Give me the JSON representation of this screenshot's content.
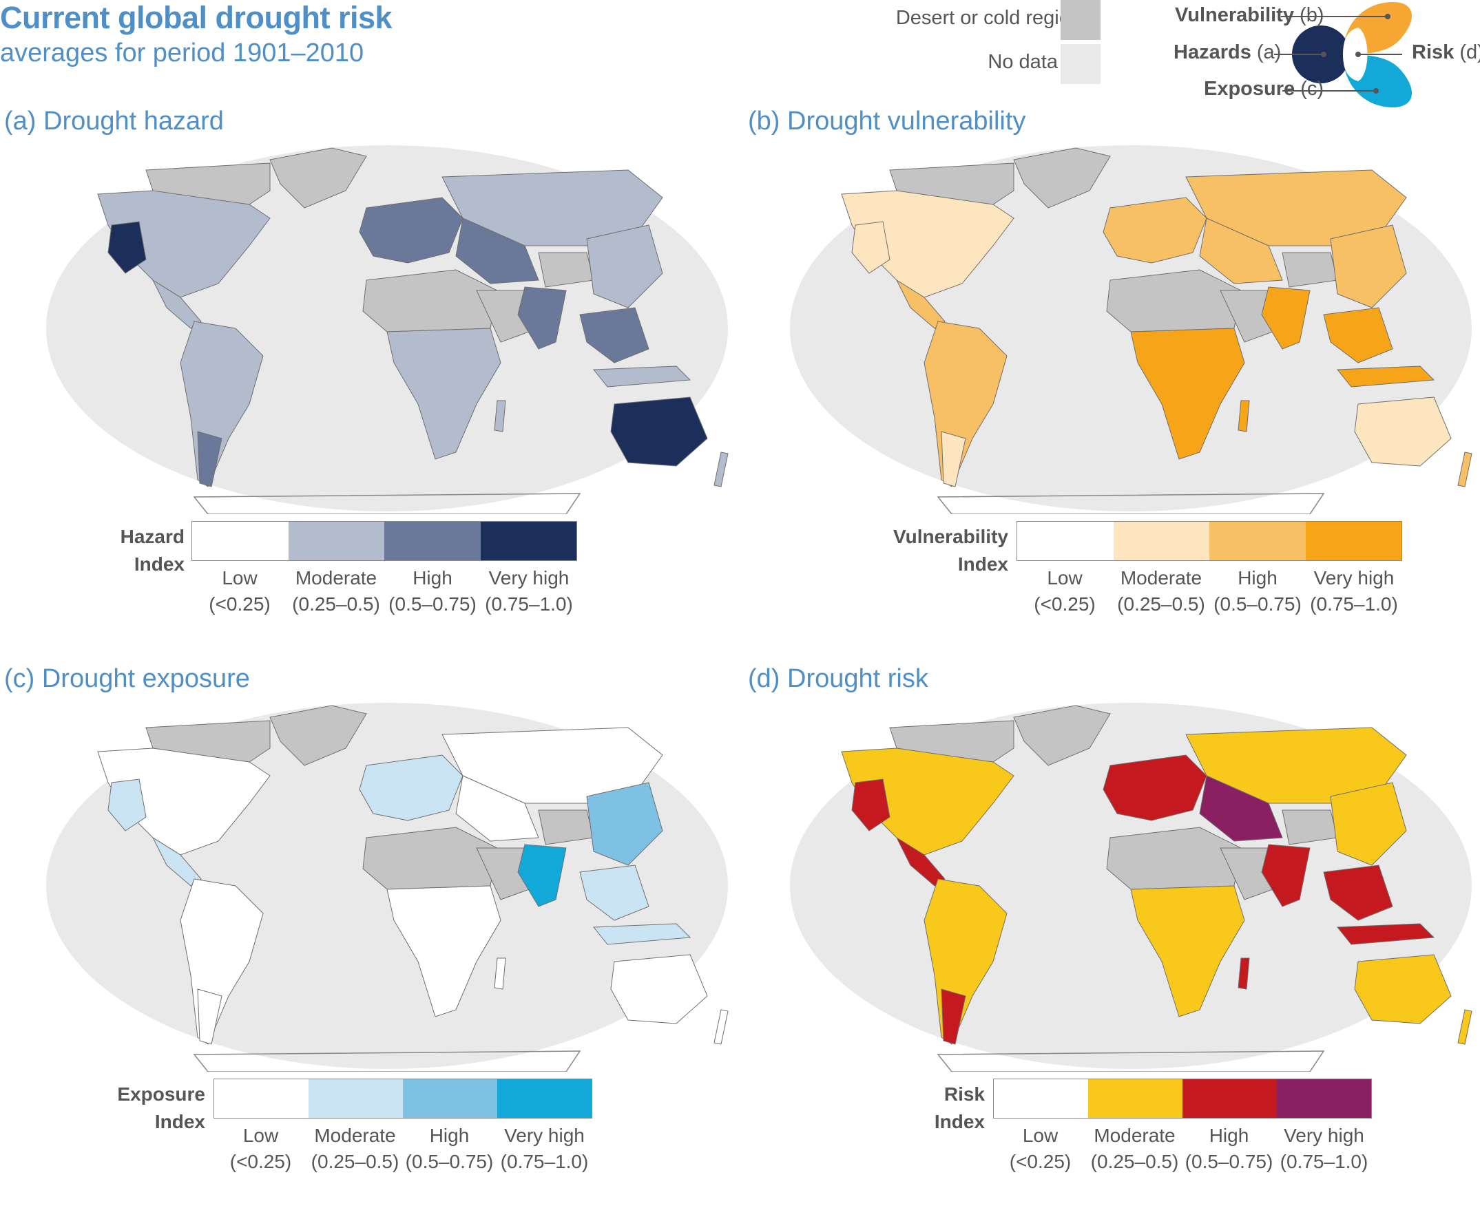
{
  "header": {
    "title": "Current global drought risk",
    "subtitle": "averages for period 1901–2010"
  },
  "key": {
    "desert_label": "Desert or cold region",
    "nodata_label": "No data",
    "desert_color": "#c4c4c4",
    "nodata_color": "#e9e9e9"
  },
  "venn": {
    "vulnerability_bold": "Vulnerability",
    "vulnerability_tag": "(b)",
    "hazards_bold": "Hazards",
    "hazards_tag": "(a)",
    "risk_bold": "Risk",
    "risk_tag": "(d)",
    "exposure_bold": "Exposure",
    "exposure_tag": "(c)",
    "colors": {
      "vulnerability": "#f5a633",
      "hazards": "#1b2f5a",
      "exposure": "#12a8d8"
    }
  },
  "panels": [
    {
      "title": "(a) Drought hazard",
      "legend_title_1": "Hazard",
      "legend_title_2": "Index",
      "colors": [
        "#ffffff",
        "#b3bccc",
        "#6a7899",
        "#1b2f5a"
      ],
      "classes": [
        {
          "name": "Low",
          "range": "(<0.25)"
        },
        {
          "name": "Moderate",
          "range": "(0.25–0.5)"
        },
        {
          "name": "High",
          "range": "(0.5–0.75)"
        },
        {
          "name": "Very high",
          "range": "(0.75–1.0)"
        }
      ]
    },
    {
      "title": "(b) Drought vulnerability",
      "legend_title_1": "Vulnerability",
      "legend_title_2": "Index",
      "colors": [
        "#ffffff",
        "#fde5c0",
        "#f8c064",
        "#f5a517"
      ],
      "classes": [
        {
          "name": "Low",
          "range": "(<0.25)"
        },
        {
          "name": "Moderate",
          "range": "(0.25–0.5)"
        },
        {
          "name": "High",
          "range": "(0.5–0.75)"
        },
        {
          "name": "Very high",
          "range": "(0.75–1.0)"
        }
      ]
    },
    {
      "title": "(c) Drought exposure",
      "legend_title_1": "Exposure",
      "legend_title_2": "Index",
      "colors": [
        "#ffffff",
        "#cbe4f3",
        "#7fc1e2",
        "#12a8d8"
      ],
      "classes": [
        {
          "name": "Low",
          "range": "(<0.25)"
        },
        {
          "name": "Moderate",
          "range": "(0.25–0.5)"
        },
        {
          "name": "High",
          "range": "(0.5–0.75)"
        },
        {
          "name": "Very high",
          "range": "(0.75–1.0)"
        }
      ]
    },
    {
      "title": "(d) Drought risk",
      "legend_title_1": "Risk",
      "legend_title_2": "Index",
      "colors": [
        "#ffffff",
        "#f8c81a",
        "#c4191f",
        "#8a1f62"
      ],
      "classes": [
        {
          "name": "Low",
          "range": "(<0.25)"
        },
        {
          "name": "Moderate",
          "range": "(0.25–0.5)"
        },
        {
          "name": "High",
          "range": "(0.5–0.75)"
        },
        {
          "name": "Very high",
          "range": "(0.75–1.0)"
        }
      ]
    }
  ]
}
